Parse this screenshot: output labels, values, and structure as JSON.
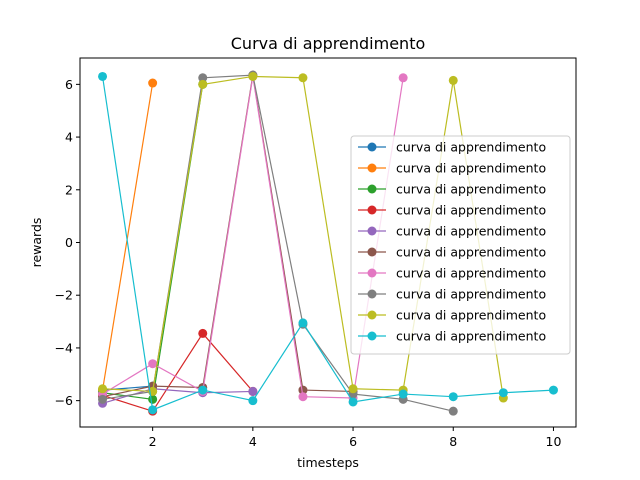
{
  "chart_data": {
    "type": "line",
    "title": "Curva di apprendimento",
    "xlabel": "timesteps",
    "ylabel": "rewards",
    "xlim": [
      0.55,
      10.45
    ],
    "ylim": [
      -7.0,
      7.0
    ],
    "xticks": [
      2,
      4,
      6,
      8,
      10
    ],
    "yticks": [
      -6,
      -4,
      -2,
      0,
      2,
      4,
      6
    ],
    "ytick_labels": [
      "−6",
      "−4",
      "−2",
      "0",
      "2",
      "4",
      "6"
    ],
    "grid": false,
    "legend_position": "center-right",
    "series": [
      {
        "name": "curva di apprendimento",
        "color": "#1f77b4",
        "x": [
          1,
          2
        ],
        "y": [
          -5.6,
          -5.45
        ]
      },
      {
        "name": "curva di apprendimento",
        "color": "#ff7f0e",
        "x": [
          1,
          2
        ],
        "y": [
          -5.6,
          6.05
        ]
      },
      {
        "name": "curva di apprendimento",
        "color": "#2ca02c",
        "x": [
          1,
          2,
          3
        ],
        "y": [
          -5.7,
          -5.95,
          6.0
        ]
      },
      {
        "name": "curva di apprendimento",
        "color": "#d62728",
        "x": [
          1,
          2,
          3,
          4
        ],
        "y": [
          -5.8,
          -6.4,
          -3.45,
          -5.65
        ]
      },
      {
        "name": "curva di apprendimento",
        "color": "#9467bd",
        "x": [
          1,
          2,
          3,
          4
        ],
        "y": [
          -6.1,
          -5.55,
          -5.7,
          -5.65
        ]
      },
      {
        "name": "curva di apprendimento",
        "color": "#8c564b",
        "x": [
          1,
          2,
          3,
          4,
          5,
          6
        ],
        "y": [
          -5.85,
          -5.45,
          -5.5,
          6.35,
          -5.6,
          -5.65
        ]
      },
      {
        "name": "curva di apprendimento",
        "color": "#e377c2",
        "x": [
          1,
          2,
          3,
          4,
          5,
          6,
          7
        ],
        "y": [
          -5.75,
          -4.6,
          -5.65,
          6.3,
          -5.85,
          -5.9,
          6.25
        ]
      },
      {
        "name": "curva di apprendimento",
        "color": "#7f7f7f",
        "x": [
          1,
          2,
          3,
          4,
          5,
          6,
          7,
          8
        ],
        "y": [
          -5.95,
          -5.65,
          6.25,
          6.35,
          -3.1,
          -5.75,
          -5.95,
          -6.4
        ]
      },
      {
        "name": "curva di apprendimento",
        "color": "#bcbd22",
        "x": [
          1,
          2,
          3,
          4,
          5,
          6,
          7,
          8,
          9
        ],
        "y": [
          -5.55,
          -5.65,
          6.0,
          6.3,
          6.25,
          -5.55,
          -5.6,
          6.15,
          -5.9
        ]
      },
      {
        "name": "curva di apprendimento",
        "color": "#17becf",
        "x": [
          1,
          2,
          3,
          4,
          5,
          6,
          7,
          8,
          9,
          10
        ],
        "y": [
          6.3,
          -6.35,
          -5.6,
          -6.0,
          -3.05,
          -6.05,
          -5.75,
          -5.85,
          -5.7,
          -5.6
        ]
      }
    ]
  }
}
